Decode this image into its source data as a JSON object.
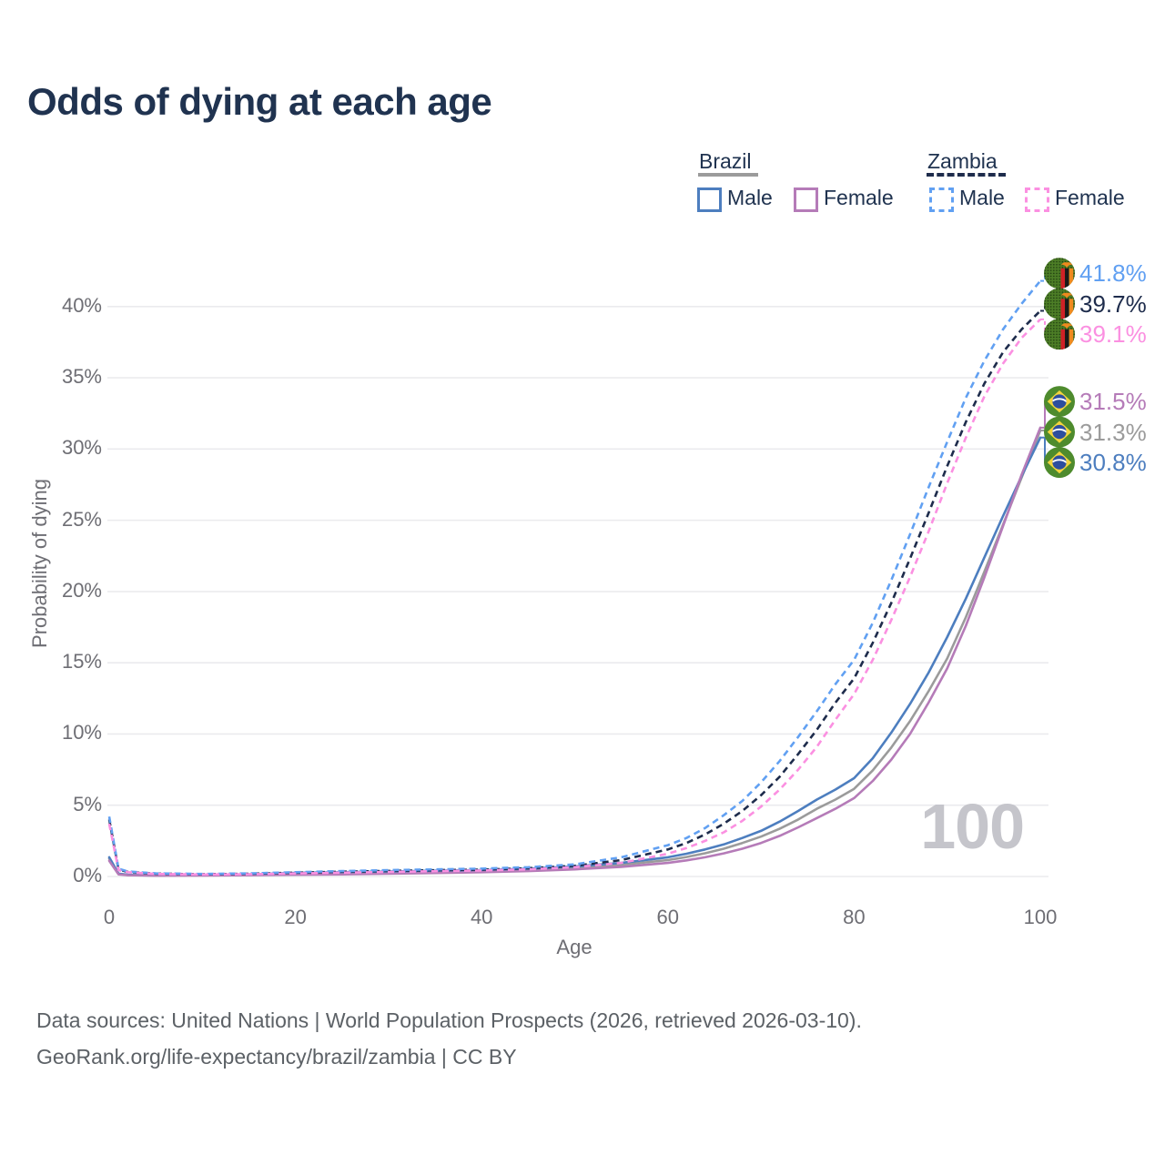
{
  "title": "Odds of dying at each age",
  "watermark": {
    "text": "100"
  },
  "footer": {
    "line1": "Data sources: United Nations | World Population Prospects (2026, retrieved 2026-03-10).",
    "line2": "GeoRank.org/life-expectancy/brazil/zambia | CC BY"
  },
  "legend": {
    "groups": [
      {
        "label": "Brazil",
        "line_style": "solid",
        "line_color": "#9b9b9b",
        "items": [
          {
            "label": "Male",
            "color": "#4d7ebf"
          },
          {
            "label": "Female",
            "color": "#b57bb8"
          }
        ]
      },
      {
        "label": "Zambia",
        "line_style": "dashed",
        "line_color": "#1e2c4c",
        "items": [
          {
            "label": "Male",
            "color": "#61a0f2"
          },
          {
            "label": "Female",
            "color": "#fb90e1"
          }
        ]
      }
    ]
  },
  "chart_data": {
    "type": "line",
    "title": "Odds of dying at each age",
    "xlabel": "Age",
    "ylabel": "Probability of dying",
    "xlim": [
      0,
      100
    ],
    "ylim": [
      0,
      43
    ],
    "grid": "horizontal",
    "x_ticks": [
      {
        "label": "0",
        "value": 0
      },
      {
        "label": "20",
        "value": 20
      },
      {
        "label": "40",
        "value": 40
      },
      {
        "label": "60",
        "value": 60
      },
      {
        "label": "80",
        "value": 80
      },
      {
        "label": "100",
        "value": 100
      }
    ],
    "y_ticks": [
      {
        "label": "0%",
        "value": 0
      },
      {
        "label": "5%",
        "value": 5
      },
      {
        "label": "10%",
        "value": 10
      },
      {
        "label": "15%",
        "value": 15
      },
      {
        "label": "20%",
        "value": 20
      },
      {
        "label": "25%",
        "value": 25
      },
      {
        "label": "30%",
        "value": 30
      },
      {
        "label": "35%",
        "value": 35
      },
      {
        "label": "40%",
        "value": 40
      }
    ],
    "series": [
      {
        "name": "Brazil Total",
        "country": "brazil",
        "sex": "both",
        "style": "solid",
        "color": "#9b9b9b",
        "flag": "brazil",
        "end_label": "31.3%",
        "end_value": 31.3,
        "points": [
          [
            0,
            1.25
          ],
          [
            1,
            0.18
          ],
          [
            2,
            0.1
          ],
          [
            5,
            0.07
          ],
          [
            10,
            0.09
          ],
          [
            15,
            0.12
          ],
          [
            20,
            0.2
          ],
          [
            25,
            0.24
          ],
          [
            30,
            0.28
          ],
          [
            35,
            0.33
          ],
          [
            40,
            0.38
          ],
          [
            45,
            0.47
          ],
          [
            50,
            0.6
          ],
          [
            55,
            0.82
          ],
          [
            60,
            1.15
          ],
          [
            62,
            1.37
          ],
          [
            64,
            1.63
          ],
          [
            66,
            1.95
          ],
          [
            68,
            2.35
          ],
          [
            70,
            2.8
          ],
          [
            72,
            3.35
          ],
          [
            74,
            4.0
          ],
          [
            76,
            4.75
          ],
          [
            78,
            5.4
          ],
          [
            80,
            6.15
          ],
          [
            82,
            7.45
          ],
          [
            84,
            9.05
          ],
          [
            86,
            10.9
          ],
          [
            88,
            13.0
          ],
          [
            90,
            15.3
          ],
          [
            92,
            18.2
          ],
          [
            94,
            21.4
          ],
          [
            96,
            24.7
          ],
          [
            98,
            28.0
          ],
          [
            100,
            31.3
          ]
        ]
      },
      {
        "name": "Brazil Male",
        "country": "brazil",
        "sex": "male",
        "style": "solid",
        "color": "#4d7ebf",
        "flag": "brazil",
        "end_label": "30.8%",
        "end_value": 30.8,
        "points": [
          [
            0,
            1.35
          ],
          [
            1,
            0.2
          ],
          [
            2,
            0.12
          ],
          [
            5,
            0.08
          ],
          [
            10,
            0.1
          ],
          [
            15,
            0.15
          ],
          [
            20,
            0.25
          ],
          [
            25,
            0.3
          ],
          [
            30,
            0.35
          ],
          [
            35,
            0.4
          ],
          [
            40,
            0.45
          ],
          [
            45,
            0.55
          ],
          [
            50,
            0.7
          ],
          [
            55,
            0.95
          ],
          [
            60,
            1.35
          ],
          [
            62,
            1.6
          ],
          [
            64,
            1.9
          ],
          [
            66,
            2.25
          ],
          [
            68,
            2.7
          ],
          [
            70,
            3.2
          ],
          [
            72,
            3.85
          ],
          [
            74,
            4.6
          ],
          [
            76,
            5.4
          ],
          [
            78,
            6.1
          ],
          [
            80,
            6.9
          ],
          [
            82,
            8.3
          ],
          [
            84,
            10.1
          ],
          [
            86,
            12.1
          ],
          [
            88,
            14.3
          ],
          [
            90,
            16.8
          ],
          [
            92,
            19.5
          ],
          [
            94,
            22.4
          ],
          [
            96,
            25.3
          ],
          [
            98,
            28.1
          ],
          [
            100,
            30.8
          ]
        ]
      },
      {
        "name": "Brazil Female",
        "country": "brazil",
        "sex": "female",
        "style": "solid",
        "color": "#b57bb8",
        "flag": "brazil",
        "end_label": "31.5%",
        "end_value": 31.5,
        "points": [
          [
            0,
            1.1
          ],
          [
            1,
            0.15
          ],
          [
            2,
            0.09
          ],
          [
            5,
            0.06
          ],
          [
            10,
            0.07
          ],
          [
            15,
            0.09
          ],
          [
            20,
            0.12
          ],
          [
            25,
            0.15
          ],
          [
            30,
            0.19
          ],
          [
            35,
            0.24
          ],
          [
            40,
            0.3
          ],
          [
            45,
            0.38
          ],
          [
            50,
            0.5
          ],
          [
            55,
            0.68
          ],
          [
            60,
            0.95
          ],
          [
            62,
            1.13
          ],
          [
            64,
            1.35
          ],
          [
            66,
            1.62
          ],
          [
            68,
            1.95
          ],
          [
            70,
            2.35
          ],
          [
            72,
            2.85
          ],
          [
            74,
            3.45
          ],
          [
            76,
            4.1
          ],
          [
            78,
            4.75
          ],
          [
            80,
            5.5
          ],
          [
            82,
            6.7
          ],
          [
            84,
            8.2
          ],
          [
            86,
            10.0
          ],
          [
            88,
            12.2
          ],
          [
            90,
            14.6
          ],
          [
            92,
            17.6
          ],
          [
            94,
            21.0
          ],
          [
            96,
            24.6
          ],
          [
            98,
            28.2
          ],
          [
            100,
            31.5
          ]
        ]
      },
      {
        "name": "Zambia Total",
        "country": "zambia",
        "sex": "both",
        "style": "dashed",
        "color": "#1e2c4c",
        "flag": "zambia",
        "end_label": "39.7%",
        "end_value": 39.7,
        "points": [
          [
            0,
            4.0
          ],
          [
            1,
            0.5
          ],
          [
            2,
            0.32
          ],
          [
            5,
            0.2
          ],
          [
            10,
            0.16
          ],
          [
            15,
            0.19
          ],
          [
            20,
            0.26
          ],
          [
            25,
            0.33
          ],
          [
            30,
            0.39
          ],
          [
            35,
            0.44
          ],
          [
            40,
            0.48
          ],
          [
            45,
            0.58
          ],
          [
            50,
            0.75
          ],
          [
            55,
            1.15
          ],
          [
            60,
            1.9
          ],
          [
            62,
            2.35
          ],
          [
            64,
            2.95
          ],
          [
            66,
            3.7
          ],
          [
            68,
            4.6
          ],
          [
            70,
            5.7
          ],
          [
            72,
            7.0
          ],
          [
            74,
            8.6
          ],
          [
            76,
            10.3
          ],
          [
            78,
            12.2
          ],
          [
            80,
            13.9
          ],
          [
            82,
            16.4
          ],
          [
            84,
            19.2
          ],
          [
            86,
            22.3
          ],
          [
            88,
            25.5
          ],
          [
            90,
            28.8
          ],
          [
            92,
            31.9
          ],
          [
            94,
            34.6
          ],
          [
            96,
            36.8
          ],
          [
            98,
            38.4
          ],
          [
            100,
            39.7
          ]
        ]
      },
      {
        "name": "Zambia Male",
        "country": "zambia",
        "sex": "male",
        "style": "dashed",
        "color": "#61a0f2",
        "flag": "zambia",
        "end_label": "41.8%",
        "end_value": 41.8,
        "points": [
          [
            0,
            4.2
          ],
          [
            1,
            0.55
          ],
          [
            2,
            0.35
          ],
          [
            5,
            0.22
          ],
          [
            10,
            0.18
          ],
          [
            15,
            0.22
          ],
          [
            20,
            0.3
          ],
          [
            25,
            0.38
          ],
          [
            30,
            0.45
          ],
          [
            35,
            0.5
          ],
          [
            40,
            0.55
          ],
          [
            45,
            0.65
          ],
          [
            50,
            0.85
          ],
          [
            55,
            1.35
          ],
          [
            60,
            2.2
          ],
          [
            62,
            2.7
          ],
          [
            64,
            3.4
          ],
          [
            66,
            4.3
          ],
          [
            68,
            5.3
          ],
          [
            70,
            6.6
          ],
          [
            72,
            8.1
          ],
          [
            74,
            9.8
          ],
          [
            76,
            11.6
          ],
          [
            78,
            13.5
          ],
          [
            80,
            15.2
          ],
          [
            82,
            17.8
          ],
          [
            84,
            20.8
          ],
          [
            86,
            24.0
          ],
          [
            88,
            27.3
          ],
          [
            90,
            30.5
          ],
          [
            92,
            33.6
          ],
          [
            94,
            36.2
          ],
          [
            96,
            38.4
          ],
          [
            98,
            40.2
          ],
          [
            100,
            41.8
          ]
        ]
      },
      {
        "name": "Zambia Female",
        "country": "zambia",
        "sex": "female",
        "style": "dashed",
        "color": "#fb90e1",
        "flag": "zambia",
        "end_label": "39.1%",
        "end_value": 39.1,
        "points": [
          [
            0,
            3.7
          ],
          [
            1,
            0.45
          ],
          [
            2,
            0.3
          ],
          [
            5,
            0.18
          ],
          [
            10,
            0.14
          ],
          [
            15,
            0.16
          ],
          [
            20,
            0.21
          ],
          [
            25,
            0.27
          ],
          [
            30,
            0.32
          ],
          [
            35,
            0.37
          ],
          [
            40,
            0.42
          ],
          [
            45,
            0.5
          ],
          [
            50,
            0.65
          ],
          [
            55,
            0.95
          ],
          [
            60,
            1.6
          ],
          [
            62,
            2.0
          ],
          [
            64,
            2.5
          ],
          [
            66,
            3.1
          ],
          [
            68,
            3.9
          ],
          [
            70,
            4.9
          ],
          [
            72,
            6.1
          ],
          [
            74,
            7.5
          ],
          [
            76,
            9.1
          ],
          [
            78,
            11.0
          ],
          [
            80,
            12.8
          ],
          [
            82,
            15.2
          ],
          [
            84,
            18.0
          ],
          [
            86,
            21.0
          ],
          [
            88,
            24.2
          ],
          [
            90,
            27.6
          ],
          [
            92,
            30.8
          ],
          [
            94,
            33.7
          ],
          [
            96,
            36.0
          ],
          [
            98,
            37.8
          ],
          [
            100,
            39.1
          ]
        ]
      }
    ],
    "end_labels": [
      {
        "text": "41.8%",
        "color": "#61a0f2",
        "flag": "zambia"
      },
      {
        "text": "39.7%",
        "color": "#1e2c4c",
        "flag": "zambia"
      },
      {
        "text": "39.1%",
        "color": "#fb90e1",
        "flag": "zambia"
      },
      {
        "text": "31.5%",
        "color": "#b57bb8",
        "flag": "brazil"
      },
      {
        "text": "31.3%",
        "color": "#9b9b9b",
        "flag": "brazil"
      },
      {
        "text": "30.8%",
        "color": "#4d7ebf",
        "flag": "brazil"
      }
    ],
    "colors": {
      "grid": "#ebebee",
      "tick_text": "#6e6e74",
      "title_text": "#203350",
      "footer_text": "#5c6166",
      "watermark": "#c5c5cb"
    }
  }
}
